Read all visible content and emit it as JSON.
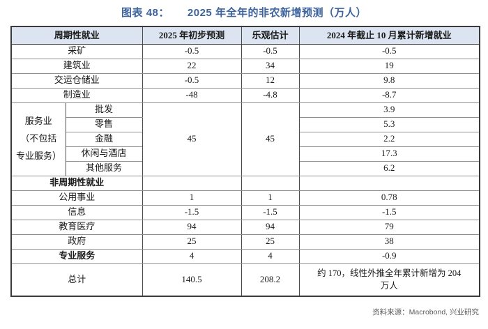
{
  "title": {
    "fig_num": "图表 48：",
    "text": "2025 年全年的非农新增预测（万人）"
  },
  "colors": {
    "title_blue": "#3d639c",
    "header_bg": "#dbe4f0",
    "source_gray": "#595959",
    "border_dark": "#3a3a3a",
    "border_gray": "#8f8f8f"
  },
  "table": {
    "headers": [
      "周期性就业",
      "2025 年初步预测",
      "乐观估计",
      "2024 年截止 10 月累计新增就业"
    ],
    "cyclical_rows": [
      {
        "label": "采矿",
        "v1": "-0.5",
        "v2": "-0.5",
        "v3": "-0.5"
      },
      {
        "label": "建筑业",
        "v1": "22",
        "v2": "34",
        "v3": "19"
      },
      {
        "label": "交运仓储业",
        "v1": "-0.5",
        "v2": "12",
        "v3": "9.8"
      },
      {
        "label": "制造业",
        "v1": "-48",
        "v2": "-4.8",
        "v3": "-8.7"
      }
    ],
    "services_group": {
      "label": "服务业（不包括专业服务）",
      "v1": "45",
      "v2": "45",
      "items": [
        {
          "label": "批发",
          "v3": "3.9"
        },
        {
          "label": "零售",
          "v3": "5.3"
        },
        {
          "label": "金融",
          "v3": "2.2"
        },
        {
          "label": "休闲与酒店",
          "v3": "17.3"
        },
        {
          "label": "其他服务",
          "v3": "6.2"
        }
      ]
    },
    "noncyclical": {
      "header": "非周期性就业",
      "rows": [
        {
          "label": "公用事业",
          "v1": "1",
          "v2": "1",
          "v3": "0.78"
        },
        {
          "label": "信息",
          "v1": "-1.5",
          "v2": "-1.5",
          "v3": "-1.5"
        },
        {
          "label": "教育医疗",
          "v1": "94",
          "v2": "94",
          "v3": "79"
        },
        {
          "label": "政府",
          "v1": "25",
          "v2": "25",
          "v3": "38"
        }
      ]
    },
    "professional": {
      "label": "专业服务",
      "v1": "4",
      "v2": "4",
      "v3": "-0.9"
    },
    "total": {
      "label": "总计",
      "v1": "140.5",
      "v2": "208.2",
      "v3": "约 170，线性外推全年累计新增为 204 万人"
    }
  },
  "footer": {
    "source": "资料来源：Macrobond, 兴业研究"
  },
  "chart_data": {
    "type": "table",
    "title": "图表 48：2025 年全年的非农新增预测（万人）",
    "columns": [
      "周期性就业",
      "2025 年初步预测",
      "乐观估计",
      "2024 年截止 10 月累计新增就业"
    ],
    "rows": [
      [
        "采矿",
        -0.5,
        -0.5,
        -0.5
      ],
      [
        "建筑业",
        22,
        34,
        19
      ],
      [
        "交运仓储业",
        -0.5,
        12,
        9.8
      ],
      [
        "制造业",
        -48,
        -4.8,
        -8.7
      ],
      [
        "服务业（不包括专业服务）：批发",
        45,
        45,
        3.9
      ],
      [
        "服务业（不包括专业服务）：零售",
        45,
        45,
        5.3
      ],
      [
        "服务业（不包括专业服务）：金融",
        45,
        45,
        2.2
      ],
      [
        "服务业（不包括专业服务）：休闲与酒店",
        45,
        45,
        17.3
      ],
      [
        "服务业（不包括专业服务）：其他服务",
        45,
        45,
        6.2
      ],
      [
        "非周期性就业",
        null,
        null,
        null
      ],
      [
        "公用事业",
        1,
        1,
        0.78
      ],
      [
        "信息",
        -1.5,
        -1.5,
        -1.5
      ],
      [
        "教育医疗",
        94,
        94,
        79
      ],
      [
        "政府",
        25,
        25,
        38
      ],
      [
        "专业服务",
        4,
        4,
        -0.9
      ],
      [
        "总计",
        140.5,
        208.2,
        "约 170，线性外推全年累计新增为 204 万人"
      ]
    ],
    "notes": "服务业（不包括专业服务）在 2025 年初步预测与乐观估计两列为合并单元格，取值 45",
    "source": "资料来源：Macrobond, 兴业研究"
  }
}
